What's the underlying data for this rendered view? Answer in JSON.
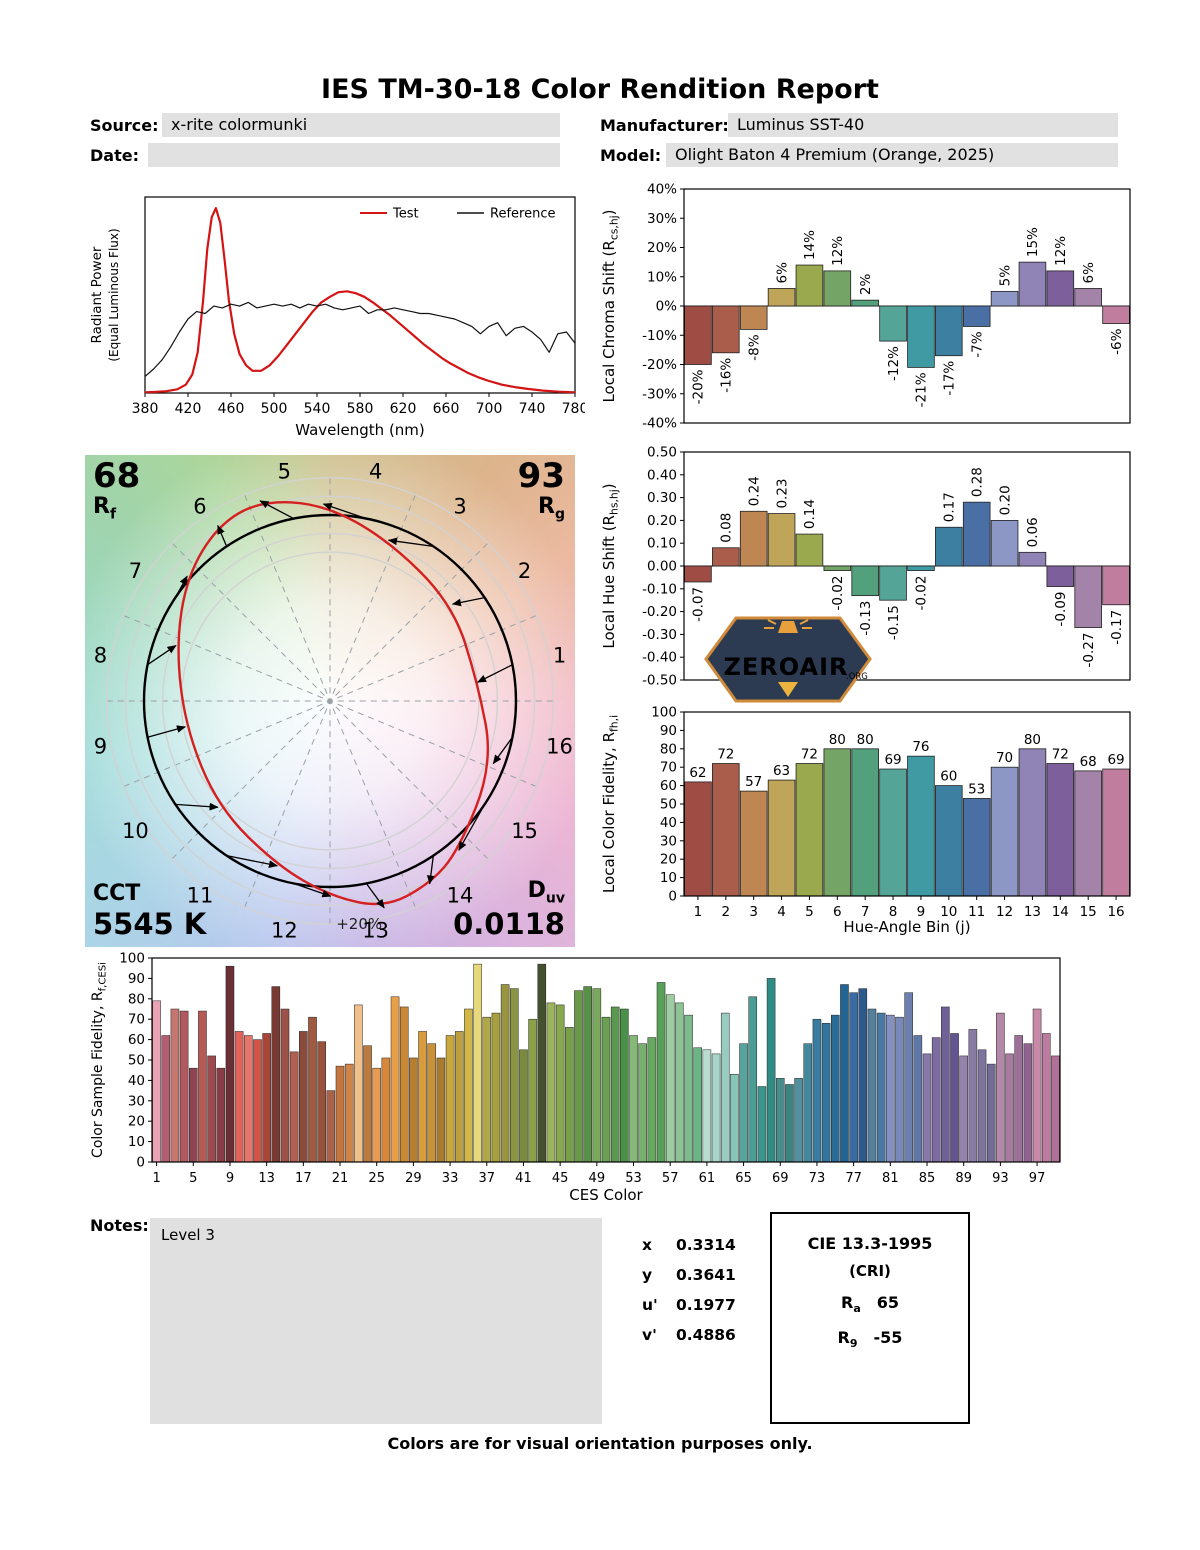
{
  "report": {
    "title": "IES TM-30-18 Color Rendition Report",
    "source_label": "Source:",
    "source_value": "x-rite colormunki",
    "manufacturer_label": "Manufacturer:",
    "manufacturer_value": "Luminus SST-40",
    "date_label": "Date:",
    "date_value": "",
    "model_label": "Model:",
    "model_value": "Olight Baton 4 Premium (Orange, 2025)",
    "notes_label": "Notes:",
    "notes_value": "Level 3",
    "footer": "Colors are for visual orientation purposes only."
  },
  "summary": {
    "rf_value": "68",
    "rf_label_base": "R",
    "rf_label_sub": "f",
    "rg_value": "93",
    "rg_label_base": "R",
    "rg_label_sub": "g",
    "cct_label": "CCT",
    "cct_value": "5545 K",
    "duv_label_base": "D",
    "duv_label_sub": "uv",
    "duv_value": "0.0118",
    "plus20_label": "+20%"
  },
  "chromaticity": {
    "x_label": "x",
    "x_value": "0.3314",
    "y_label": "y",
    "y_value": "0.3641",
    "u_label": "u'",
    "u_value": "0.1977",
    "v_label": "v'",
    "v_value": "0.4886"
  },
  "cri_box": {
    "title": "CIE 13.3-1995",
    "subtitle": "(CRI)",
    "ra_base": "R",
    "ra_sub": "a",
    "ra_value": "65",
    "r9_base": "R",
    "r9_sub": "9",
    "r9_value": "-55"
  },
  "logo": {
    "name": "ZEROAIR",
    "suffix": ".ORG"
  },
  "hue_bin_colors": [
    "#9e4c44",
    "#aa5d4b",
    "#bd8653",
    "#bfa557",
    "#9ba94e",
    "#74a566",
    "#53a07c",
    "#54a497",
    "#3f9aa3",
    "#3d7fa0",
    "#4a6fa5",
    "#8d97c6",
    "#9083b5",
    "#7c5f9b",
    "#a383a8",
    "#c17d9e"
  ],
  "chart_data": [
    {
      "id": "spd",
      "type": "line",
      "xlabel": "Wavelength (nm)",
      "ylabel_line1": "Radiant Power",
      "ylabel_line2": "(Equal Luminous Flux)",
      "xlim": [
        380,
        780
      ],
      "ylim": [
        0,
        1.06
      ],
      "xticks": [
        380,
        420,
        460,
        500,
        540,
        580,
        620,
        660,
        700,
        740,
        780
      ],
      "legend": [
        {
          "label": "Test",
          "color": "#d41414"
        },
        {
          "label": "Reference",
          "color": "#111111"
        }
      ],
      "series": [
        {
          "name": "Test",
          "color": "#d41414",
          "width": 2.2,
          "x": [
            380,
            390,
            400,
            410,
            418,
            424,
            429,
            434,
            438,
            442,
            446,
            450,
            454,
            458,
            463,
            468,
            474,
            480,
            488,
            496,
            504,
            512,
            520,
            528,
            536,
            544,
            552,
            560,
            568,
            576,
            584,
            592,
            600,
            608,
            616,
            624,
            632,
            640,
            648,
            656,
            664,
            672,
            680,
            690,
            700,
            712,
            724,
            736,
            750,
            765,
            780
          ],
          "y": [
            0.004,
            0.006,
            0.01,
            0.02,
            0.045,
            0.1,
            0.22,
            0.5,
            0.78,
            0.95,
            1.0,
            0.92,
            0.72,
            0.5,
            0.32,
            0.21,
            0.15,
            0.12,
            0.12,
            0.15,
            0.2,
            0.26,
            0.32,
            0.38,
            0.44,
            0.49,
            0.52,
            0.545,
            0.55,
            0.54,
            0.52,
            0.49,
            0.455,
            0.42,
            0.38,
            0.34,
            0.3,
            0.26,
            0.225,
            0.19,
            0.16,
            0.135,
            0.11,
            0.085,
            0.065,
            0.045,
            0.032,
            0.022,
            0.013,
            0.007,
            0.004
          ]
        },
        {
          "name": "Reference",
          "color": "#111111",
          "width": 1.2,
          "x": [
            380,
            388,
            396,
            404,
            412,
            420,
            428,
            436,
            444,
            452,
            460,
            468,
            476,
            484,
            492,
            500,
            508,
            516,
            524,
            532,
            540,
            548,
            556,
            564,
            572,
            580,
            588,
            596,
            604,
            612,
            620,
            628,
            636,
            644,
            652,
            660,
            668,
            676,
            684,
            692,
            700,
            708,
            716,
            724,
            732,
            740,
            748,
            756,
            764,
            772,
            780
          ],
          "y": [
            0.09,
            0.13,
            0.18,
            0.25,
            0.33,
            0.4,
            0.44,
            0.43,
            0.47,
            0.46,
            0.48,
            0.47,
            0.49,
            0.46,
            0.47,
            0.48,
            0.47,
            0.48,
            0.46,
            0.48,
            0.47,
            0.48,
            0.46,
            0.45,
            0.46,
            0.47,
            0.43,
            0.45,
            0.45,
            0.46,
            0.45,
            0.44,
            0.43,
            0.43,
            0.42,
            0.41,
            0.4,
            0.38,
            0.36,
            0.32,
            0.36,
            0.38,
            0.31,
            0.35,
            0.36,
            0.33,
            0.29,
            0.22,
            0.32,
            0.33,
            0.27
          ]
        }
      ]
    },
    {
      "id": "chroma_shift",
      "type": "bar",
      "ylabel": "Local Chroma Shift (R_{cs,hj})",
      "categories": [
        1,
        2,
        3,
        4,
        5,
        6,
        7,
        8,
        9,
        10,
        11,
        12,
        13,
        14,
        15,
        16
      ],
      "values": [
        -20,
        -16,
        -8,
        6,
        14,
        12,
        2,
        -12,
        -21,
        -17,
        -7,
        5,
        15,
        12,
        6,
        -6
      ],
      "bar_labels": [
        "-20%",
        "-16%",
        "-8%",
        "6%",
        "14%",
        "12%",
        "2%",
        "-12%",
        "-21%",
        "-17%",
        "-7%",
        "5%",
        "15%",
        "12%",
        "6%",
        "-6%"
      ],
      "label_style": "rotated",
      "ylim": [
        -40,
        40
      ],
      "yticks": [
        {
          "v": -40,
          "label": "-40%"
        },
        {
          "v": -30,
          "label": "-30%"
        },
        {
          "v": -20,
          "label": "-20%"
        },
        {
          "v": -10,
          "label": "-10%"
        },
        {
          "v": 0,
          "label": "0%"
        },
        {
          "v": 10,
          "label": "10%"
        },
        {
          "v": 20,
          "label": "20%"
        },
        {
          "v": 30,
          "label": "30%"
        },
        {
          "v": 40,
          "label": "40%"
        }
      ]
    },
    {
      "id": "hue_shift",
      "type": "bar",
      "ylabel": "Local Hue Shift (R_{hs,hj})",
      "categories": [
        1,
        2,
        3,
        4,
        5,
        6,
        7,
        8,
        9,
        10,
        11,
        12,
        13,
        14,
        15,
        16
      ],
      "values": [
        -0.07,
        0.08,
        0.24,
        0.23,
        0.14,
        -0.02,
        -0.13,
        -0.15,
        -0.02,
        0.17,
        0.28,
        0.2,
        0.06,
        -0.09,
        -0.27,
        -0.17
      ],
      "bar_labels": [
        "-0.07",
        "0.08",
        "0.24",
        "0.23",
        "0.14",
        "-0.02",
        "-0.13",
        "-0.15",
        "-0.02",
        "0.17",
        "0.28",
        "0.20",
        "0.06",
        "-0.09",
        "-0.27",
        "-0.17"
      ],
      "label_style": "rotated",
      "ylim": [
        -0.5,
        0.5
      ],
      "yticks": [
        {
          "v": -0.5,
          "label": "-0.50"
        },
        {
          "v": -0.4,
          "label": "-0.40"
        },
        {
          "v": -0.3,
          "label": "-0.30"
        },
        {
          "v": -0.2,
          "label": "-0.20"
        },
        {
          "v": -0.1,
          "label": "-0.10"
        },
        {
          "v": 0,
          "label": "0.00"
        },
        {
          "v": 0.1,
          "label": "0.10"
        },
        {
          "v": 0.2,
          "label": "0.20"
        },
        {
          "v": 0.3,
          "label": "0.30"
        },
        {
          "v": 0.4,
          "label": "0.40"
        },
        {
          "v": 0.5,
          "label": "0.50"
        }
      ]
    },
    {
      "id": "local_fidelity",
      "type": "bar",
      "ylabel": "Local Color Fidelity, R_{fh,i}",
      "xlabel": "Hue-Angle Bin (j)",
      "categories": [
        1,
        2,
        3,
        4,
        5,
        6,
        7,
        8,
        9,
        10,
        11,
        12,
        13,
        14,
        15,
        16
      ],
      "values": [
        62,
        72,
        57,
        63,
        72,
        80,
        80,
        69,
        76,
        60,
        53,
        70,
        80,
        72,
        68,
        69
      ],
      "bar_labels": [
        "62",
        "72",
        "57",
        "63",
        "72",
        "80",
        "80",
        "69",
        "76",
        "60",
        "53",
        "70",
        "80",
        "72",
        "68",
        "69"
      ],
      "label_style": "horizontal",
      "xtick_labels": [
        "1",
        "2",
        "3",
        "4",
        "5",
        "6",
        "7",
        "8",
        "9",
        "10",
        "11",
        "12",
        "13",
        "14",
        "15",
        "16"
      ],
      "ylim": [
        0,
        100
      ],
      "yticks": [
        {
          "v": 0,
          "label": "0"
        },
        {
          "v": 10,
          "label": "10"
        },
        {
          "v": 20,
          "label": "20"
        },
        {
          "v": 30,
          "label": "30"
        },
        {
          "v": 40,
          "label": "40"
        },
        {
          "v": 50,
          "label": "50"
        },
        {
          "v": 60,
          "label": "60"
        },
        {
          "v": 70,
          "label": "70"
        },
        {
          "v": 80,
          "label": "80"
        },
        {
          "v": 90,
          "label": "90"
        },
        {
          "v": 100,
          "label": "100"
        }
      ]
    },
    {
      "id": "ces",
      "type": "bar",
      "ylabel": "Color Sample Fidelity, R_{f,CESi}",
      "xlabel": "CES Color",
      "label_style": "none",
      "xticks_at": [
        1,
        5,
        9,
        13,
        17,
        21,
        25,
        29,
        33,
        37,
        41,
        45,
        49,
        53,
        57,
        61,
        65,
        69,
        73,
        77,
        81,
        85,
        89,
        93,
        97
      ],
      "ylim": [
        0,
        100
      ],
      "yticks": [
        {
          "v": 0,
          "label": "0"
        },
        {
          "v": 10,
          "label": "10"
        },
        {
          "v": 20,
          "label": "20"
        },
        {
          "v": 30,
          "label": "30"
        },
        {
          "v": 40,
          "label": "40"
        },
        {
          "v": 50,
          "label": "50"
        },
        {
          "v": 60,
          "label": "60"
        },
        {
          "v": 70,
          "label": "70"
        },
        {
          "v": 80,
          "label": "80"
        },
        {
          "v": 90,
          "label": "90"
        },
        {
          "v": 100,
          "label": "100"
        }
      ],
      "values": [
        79,
        62,
        75,
        74,
        46,
        74,
        52,
        46,
        96,
        64,
        62,
        60,
        63,
        86,
        75,
        54,
        64,
        71,
        59,
        35,
        47,
        48,
        77,
        57,
        46,
        51,
        81,
        76,
        51,
        64,
        58,
        51,
        62,
        64,
        75,
        97,
        71,
        73,
        87,
        85,
        55,
        70,
        97,
        78,
        77,
        66,
        84,
        86,
        85,
        71,
        76,
        75,
        62,
        58,
        61,
        88,
        82,
        78,
        72,
        56,
        55,
        53,
        73,
        43,
        58,
        81,
        37,
        90,
        41,
        38,
        41,
        58,
        70,
        68,
        72,
        87,
        83,
        85,
        75,
        73,
        72,
        71,
        83,
        62,
        53,
        61,
        76,
        63,
        52,
        65,
        55,
        48,
        73,
        53,
        62,
        58,
        75,
        63,
        52
      ],
      "colors": [
        "#eaa3b5",
        "#b35d72",
        "#c4766f",
        "#b05a60",
        "#8e4452",
        "#b65a55",
        "#9c4a4e",
        "#8a3c44",
        "#6b2f36",
        "#e2625a",
        "#e4766a",
        "#d05548",
        "#a84438",
        "#7a3a34",
        "#9c5248",
        "#b06050",
        "#8a4a3c",
        "#a05a42",
        "#96523c",
        "#aa6248",
        "#c4763e",
        "#d08448",
        "#f0c08a",
        "#ba7a40",
        "#e89a50",
        "#d8883c",
        "#e8a048",
        "#c88834",
        "#b87e30",
        "#d89c3c",
        "#c89238",
        "#a87c2c",
        "#c8a83c",
        "#bca040",
        "#d0b848",
        "#e8d87c",
        "#b0a848",
        "#a8a040",
        "#989440",
        "#8a9444",
        "#7a8c3c",
        "#8ca048",
        "#44502e",
        "#9cb45c",
        "#88a850",
        "#78a048",
        "#68984a",
        "#589048",
        "#7aa85c",
        "#6aa054",
        "#5a9850",
        "#4a9048",
        "#86b878",
        "#76b06c",
        "#66a860",
        "#56a058",
        "#9ccca0",
        "#8cc494",
        "#7cbc8c",
        "#6cb484",
        "#b8dcd0",
        "#a8d4c8",
        "#98ccc0",
        "#88c4b8",
        "#58a49c",
        "#4a9c94",
        "#3c948c",
        "#2e8c84",
        "#4a8c8c",
        "#3c8484",
        "#5290a0",
        "#44889c",
        "#3a7ca0",
        "#32749c",
        "#2a6c98",
        "#226494",
        "#3a6ca4",
        "#2c5a8c",
        "#54809c",
        "#4878a4",
        "#8490c0",
        "#7888b8",
        "#6c80b0",
        "#6078a8",
        "#8878a8",
        "#7c6ca0",
        "#706098",
        "#645490",
        "#9484ac",
        "#887ca4",
        "#7c749c",
        "#706c94",
        "#b488a8",
        "#a87ca0",
        "#9c7098",
        "#906490",
        "#c888a8",
        "#bc7ca0",
        "#b07098"
      ]
    },
    {
      "id": "color_vector",
      "type": "vector_graphic",
      "bin_labels": [
        "1",
        "2",
        "3",
        "4",
        "5",
        "6",
        "7",
        "8",
        "9",
        "10",
        "11",
        "12",
        "13",
        "14",
        "15",
        "16"
      ],
      "rcs_percent": [
        -20,
        -16,
        -8,
        6,
        14,
        12,
        2,
        -12,
        -21,
        -17,
        -7,
        5,
        15,
        12,
        6,
        -6
      ],
      "rhs": [
        -0.07,
        0.08,
        0.24,
        0.23,
        0.14,
        -0.02,
        -0.13,
        -0.15,
        -0.02,
        0.17,
        0.28,
        0.2,
        0.06,
        -0.09,
        -0.27,
        -0.17
      ],
      "ring_ratios": [
        0.8,
        0.9,
        1.1,
        1.2
      ],
      "test_color": "#d42020",
      "reference_color": "#000000"
    }
  ]
}
